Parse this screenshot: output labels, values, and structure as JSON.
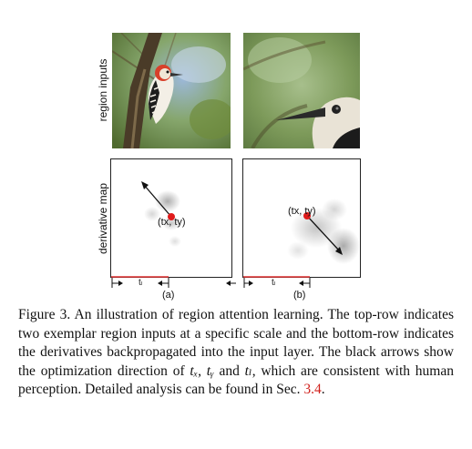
{
  "row_labels": {
    "top": "region inputs",
    "bottom": "derivative map"
  },
  "panels": {
    "a": {
      "label": "(a)",
      "point_label": "(tx, ty)",
      "tl_label": "tₗ"
    },
    "b": {
      "label": "(b)",
      "point_label": "(tx, ty)",
      "tl_label": "tₗ"
    }
  },
  "caption": {
    "figure": "Figure 3.",
    "text_1": "An illustration of region attention learning. The top-row indicates two exemplar region inputs at a specific scale and the bottom-row indicates the derivatives backpropagated into the input layer.  The black arrows show the optimization direction of",
    "math": "tₓ, tᵧ",
    "text_2": "and",
    "math_2": "tₗ",
    "text_3": ", which are consistent with human perception.  Detailed analysis can be found in Sec.",
    "ref": "3.4",
    "end": "."
  },
  "colors": {
    "point": "#e01b1b",
    "ref": "#d0201b",
    "tl_line": "#e03030"
  }
}
